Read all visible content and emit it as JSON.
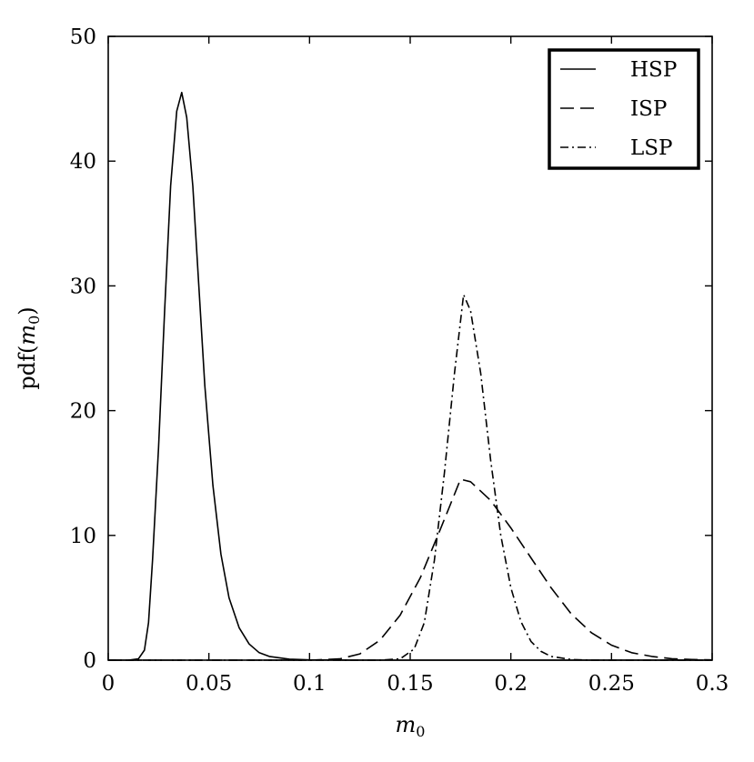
{
  "chart_data": {
    "type": "line",
    "title": "",
    "xlabel": "m",
    "xlabel_sub": "0",
    "ylabel_prefix": "pdf(",
    "ylabel_var": "m",
    "ylabel_sub": "0",
    "ylabel_suffix": ")",
    "xlim": [
      0,
      0.3
    ],
    "ylim": [
      0,
      50
    ],
    "xticks": [
      0,
      0.05,
      0.1,
      0.15,
      0.2,
      0.25,
      0.3
    ],
    "xtick_labels": [
      "0",
      "0.05",
      "0.1",
      "0.15",
      "0.2",
      "0.25",
      "0.3"
    ],
    "yticks": [
      0,
      10,
      20,
      30,
      40,
      50
    ],
    "ytick_labels": [
      "0",
      "10",
      "20",
      "30",
      "40",
      "50"
    ],
    "grid": false,
    "legend_position": "top-right",
    "series": [
      {
        "name": "HSP",
        "style": "solid",
        "color": "#000000",
        "points": [
          [
            0,
            0
          ],
          [
            0.01,
            0
          ],
          [
            0.015,
            0.1
          ],
          [
            0.018,
            0.8
          ],
          [
            0.02,
            3
          ],
          [
            0.022,
            8
          ],
          [
            0.025,
            17
          ],
          [
            0.028,
            28
          ],
          [
            0.031,
            38
          ],
          [
            0.034,
            44
          ],
          [
            0.0365,
            45.5
          ],
          [
            0.039,
            43.5
          ],
          [
            0.042,
            38
          ],
          [
            0.045,
            30
          ],
          [
            0.048,
            22
          ],
          [
            0.052,
            14
          ],
          [
            0.056,
            8.5
          ],
          [
            0.06,
            5
          ],
          [
            0.065,
            2.6
          ],
          [
            0.07,
            1.3
          ],
          [
            0.075,
            0.6
          ],
          [
            0.08,
            0.3
          ],
          [
            0.09,
            0.08
          ],
          [
            0.1,
            0.02
          ],
          [
            0.12,
            0
          ],
          [
            0.2,
            0
          ],
          [
            0.3,
            0
          ]
        ]
      },
      {
        "name": "ISP",
        "style": "dashed",
        "color": "#000000",
        "points": [
          [
            0,
            0
          ],
          [
            0.1,
            0
          ],
          [
            0.115,
            0.1
          ],
          [
            0.125,
            0.5
          ],
          [
            0.135,
            1.6
          ],
          [
            0.145,
            3.6
          ],
          [
            0.155,
            6.6
          ],
          [
            0.165,
            10.5
          ],
          [
            0.17,
            12.5
          ],
          [
            0.175,
            14.5
          ],
          [
            0.18,
            14.3
          ],
          [
            0.19,
            12.8
          ],
          [
            0.2,
            10.6
          ],
          [
            0.21,
            8.2
          ],
          [
            0.22,
            5.8
          ],
          [
            0.23,
            3.7
          ],
          [
            0.24,
            2.2
          ],
          [
            0.25,
            1.2
          ],
          [
            0.26,
            0.6
          ],
          [
            0.27,
            0.3
          ],
          [
            0.28,
            0.12
          ],
          [
            0.29,
            0.05
          ],
          [
            0.3,
            0.02
          ]
        ]
      },
      {
        "name": "LSP",
        "style": "dashdot",
        "color": "#000000",
        "points": [
          [
            0,
            0
          ],
          [
            0.135,
            0
          ],
          [
            0.145,
            0.1
          ],
          [
            0.152,
            0.9
          ],
          [
            0.157,
            3
          ],
          [
            0.162,
            8
          ],
          [
            0.167,
            15
          ],
          [
            0.172,
            23
          ],
          [
            0.1765,
            29.3
          ],
          [
            0.18,
            28
          ],
          [
            0.185,
            23
          ],
          [
            0.19,
            16
          ],
          [
            0.195,
            10
          ],
          [
            0.2,
            5.8
          ],
          [
            0.205,
            3.1
          ],
          [
            0.21,
            1.5
          ],
          [
            0.215,
            0.7
          ],
          [
            0.22,
            0.3
          ],
          [
            0.23,
            0.05
          ],
          [
            0.24,
            0
          ],
          [
            0.3,
            0
          ]
        ]
      }
    ]
  }
}
